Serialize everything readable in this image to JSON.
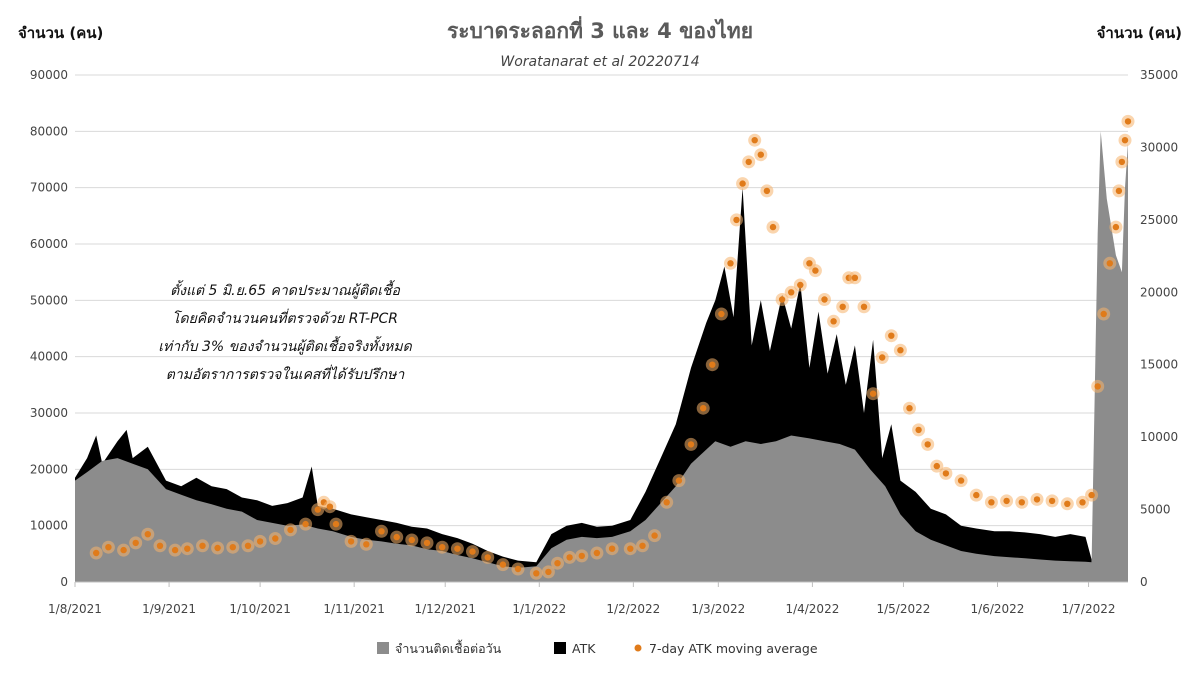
{
  "chart_data": {
    "type": "area",
    "title": "ระบาดระลอกที่ 3 และ 4 ของไทย",
    "subtitle": "Woratanarat et al 20220714",
    "ylabel_left": "จำนวน (คน)",
    "ylabel_right": "จำนวน (คน)",
    "ylim_left": [
      0,
      90000
    ],
    "ylim_right": [
      0,
      35000
    ],
    "y_ticks_left": [
      "0",
      "10000",
      "20000",
      "30000",
      "40000",
      "50000",
      "60000",
      "70000",
      "80000",
      "90000"
    ],
    "y_ticks_right": [
      "0",
      "5000",
      "10000",
      "15000",
      "20000",
      "25000",
      "30000",
      "35000"
    ],
    "x_ticks": [
      "1/8/2021",
      "1/9/2021",
      "1/10/2021",
      "1/11/2021",
      "1/12/2021",
      "1/1/2022",
      "1/2/2022",
      "1/3/2022",
      "1/4/2022",
      "1/5/2022",
      "1/6/2022",
      "1/7/2022"
    ],
    "x_range": [
      "2021-08-01",
      "2022-07-14"
    ],
    "annotation": [
      "ตั้งแต่ 5 มิ.ย.65 คาดประมาณผู้ติดเชื้อ",
      "โดยคิดจำนวนคนที่ตรวจด้วย RT-PCR",
      "เท่ากับ 3% ของจำนวนผู้ติดเชื้อจริงทั้งหมด",
      "ตามอัตราการตรวจในเคสที่ได้รับปรึกษา"
    ],
    "legend_position": "bottom",
    "series": [
      {
        "name": "จำนวนติดเชื้อต่อวัน",
        "axis": "left",
        "color": "#8c8c8c",
        "kind": "area",
        "points": [
          [
            "2021-08-01",
            18000
          ],
          [
            "2021-08-05",
            19500
          ],
          [
            "2021-08-10",
            21500
          ],
          [
            "2021-08-15",
            22000
          ],
          [
            "2021-08-20",
            21000
          ],
          [
            "2021-08-25",
            20000
          ],
          [
            "2021-08-31",
            16500
          ],
          [
            "2021-09-05",
            15500
          ],
          [
            "2021-09-10",
            14500
          ],
          [
            "2021-09-15",
            13800
          ],
          [
            "2021-09-20",
            13000
          ],
          [
            "2021-09-25",
            12500
          ],
          [
            "2021-09-30",
            11000
          ],
          [
            "2021-10-05",
            10500
          ],
          [
            "2021-10-10",
            10000
          ],
          [
            "2021-10-15",
            10200
          ],
          [
            "2021-10-20",
            9500
          ],
          [
            "2021-10-25",
            9000
          ],
          [
            "2021-10-31",
            8000
          ],
          [
            "2021-11-05",
            7500
          ],
          [
            "2021-11-10",
            7200
          ],
          [
            "2021-11-15",
            6800
          ],
          [
            "2021-11-20",
            6500
          ],
          [
            "2021-11-25",
            5800
          ],
          [
            "2021-11-30",
            5500
          ],
          [
            "2021-12-05",
            4800
          ],
          [
            "2021-12-10",
            4200
          ],
          [
            "2021-12-15",
            3500
          ],
          [
            "2021-12-20",
            2800
          ],
          [
            "2021-12-25",
            2500
          ],
          [
            "2021-12-31",
            2800
          ],
          [
            "2022-01-05",
            6000
          ],
          [
            "2022-01-10",
            7500
          ],
          [
            "2022-01-15",
            8000
          ],
          [
            "2022-01-20",
            7800
          ],
          [
            "2022-01-25",
            8000
          ],
          [
            "2022-01-31",
            9000
          ],
          [
            "2022-02-05",
            11000
          ],
          [
            "2022-02-10",
            14000
          ],
          [
            "2022-02-15",
            17000
          ],
          [
            "2022-02-20",
            21000
          ],
          [
            "2022-02-25",
            23500
          ],
          [
            "2022-02-28",
            25000
          ],
          [
            "2022-03-05",
            24000
          ],
          [
            "2022-03-10",
            25000
          ],
          [
            "2022-03-15",
            24500
          ],
          [
            "2022-03-20",
            25000
          ],
          [
            "2022-03-25",
            26000
          ],
          [
            "2022-03-31",
            25500
          ],
          [
            "2022-04-05",
            25000
          ],
          [
            "2022-04-10",
            24500
          ],
          [
            "2022-04-15",
            23500
          ],
          [
            "2022-04-20",
            20000
          ],
          [
            "2022-04-25",
            17000
          ],
          [
            "2022-04-30",
            12000
          ],
          [
            "2022-05-05",
            9000
          ],
          [
            "2022-05-10",
            7500
          ],
          [
            "2022-05-15",
            6500
          ],
          [
            "2022-05-20",
            5500
          ],
          [
            "2022-05-25",
            5000
          ],
          [
            "2022-05-31",
            4600
          ],
          [
            "2022-06-05",
            4400
          ],
          [
            "2022-06-10",
            4200
          ],
          [
            "2022-06-15",
            4000
          ],
          [
            "2022-06-20",
            3800
          ],
          [
            "2022-06-25",
            3700
          ],
          [
            "2022-06-30",
            3600
          ],
          [
            "2022-07-02",
            3500
          ],
          [
            "2022-07-04",
            62000
          ],
          [
            "2022-07-05",
            80000
          ],
          [
            "2022-07-07",
            68000
          ],
          [
            "2022-07-10",
            58000
          ],
          [
            "2022-07-12",
            55000
          ],
          [
            "2022-07-13",
            70000
          ],
          [
            "2022-07-14",
            78000
          ]
        ]
      },
      {
        "name": "ATK",
        "axis": "left",
        "color": "#000000",
        "kind": "area",
        "points": [
          [
            "2021-08-01",
            18500
          ],
          [
            "2021-08-05",
            22000
          ],
          [
            "2021-08-08",
            26000
          ],
          [
            "2021-08-10",
            21000
          ],
          [
            "2021-08-15",
            25000
          ],
          [
            "2021-08-18",
            27000
          ],
          [
            "2021-08-20",
            22000
          ],
          [
            "2021-08-25",
            24000
          ],
          [
            "2021-08-31",
            18000
          ],
          [
            "2021-09-05",
            17000
          ],
          [
            "2021-09-10",
            18500
          ],
          [
            "2021-09-15",
            17000
          ],
          [
            "2021-09-20",
            16500
          ],
          [
            "2021-09-25",
            15000
          ],
          [
            "2021-09-30",
            14500
          ],
          [
            "2021-10-05",
            13500
          ],
          [
            "2021-10-10",
            14000
          ],
          [
            "2021-10-15",
            15000
          ],
          [
            "2021-10-18",
            20500
          ],
          [
            "2021-10-20",
            13500
          ],
          [
            "2021-10-25",
            13000
          ],
          [
            "2021-10-31",
            12000
          ],
          [
            "2021-11-05",
            11500
          ],
          [
            "2021-11-10",
            11000
          ],
          [
            "2021-11-15",
            10500
          ],
          [
            "2021-11-20",
            9800
          ],
          [
            "2021-11-25",
            9500
          ],
          [
            "2021-11-30",
            8500
          ],
          [
            "2021-12-05",
            7800
          ],
          [
            "2021-12-10",
            6800
          ],
          [
            "2021-12-15",
            5500
          ],
          [
            "2021-12-20",
            4500
          ],
          [
            "2021-12-25",
            3800
          ],
          [
            "2021-12-31",
            3500
          ],
          [
            "2022-01-05",
            8500
          ],
          [
            "2022-01-10",
            10000
          ],
          [
            "2022-01-15",
            10500
          ],
          [
            "2022-01-20",
            9800
          ],
          [
            "2022-01-25",
            10000
          ],
          [
            "2022-01-31",
            11000
          ],
          [
            "2022-02-05",
            16000
          ],
          [
            "2022-02-10",
            22000
          ],
          [
            "2022-02-15",
            28000
          ],
          [
            "2022-02-20",
            38000
          ],
          [
            "2022-02-25",
            46000
          ],
          [
            "2022-02-28",
            50000
          ],
          [
            "2022-03-03",
            56000
          ],
          [
            "2022-03-06",
            47000
          ],
          [
            "2022-03-09",
            70000
          ],
          [
            "2022-03-12",
            42000
          ],
          [
            "2022-03-15",
            50000
          ],
          [
            "2022-03-18",
            41000
          ],
          [
            "2022-03-22",
            51000
          ],
          [
            "2022-03-25",
            45000
          ],
          [
            "2022-03-28",
            53000
          ],
          [
            "2022-03-31",
            38000
          ],
          [
            "2022-04-03",
            48000
          ],
          [
            "2022-04-06",
            37000
          ],
          [
            "2022-04-09",
            44000
          ],
          [
            "2022-04-12",
            35000
          ],
          [
            "2022-04-15",
            42000
          ],
          [
            "2022-04-18",
            30000
          ],
          [
            "2022-04-21",
            43000
          ],
          [
            "2022-04-24",
            22000
          ],
          [
            "2022-04-27",
            28000
          ],
          [
            "2022-04-30",
            18000
          ],
          [
            "2022-05-05",
            16000
          ],
          [
            "2022-05-10",
            13000
          ],
          [
            "2022-05-15",
            12000
          ],
          [
            "2022-05-20",
            10000
          ],
          [
            "2022-05-25",
            9500
          ],
          [
            "2022-05-31",
            9000
          ],
          [
            "2022-06-05",
            9000
          ],
          [
            "2022-06-10",
            8800
          ],
          [
            "2022-06-15",
            8500
          ],
          [
            "2022-06-20",
            8000
          ],
          [
            "2022-06-25",
            8500
          ],
          [
            "2022-06-30",
            8000
          ],
          [
            "2022-07-02",
            4000
          ]
        ]
      },
      {
        "name": "7-day ATK moving average",
        "axis": "right",
        "color": "#e07b1a",
        "kind": "dots",
        "points": [
          [
            "2021-08-08",
            2000
          ],
          [
            "2021-08-12",
            2400
          ],
          [
            "2021-08-17",
            2200
          ],
          [
            "2021-08-21",
            2700
          ],
          [
            "2021-08-25",
            3300
          ],
          [
            "2021-08-29",
            2500
          ],
          [
            "2021-09-03",
            2200
          ],
          [
            "2021-09-07",
            2300
          ],
          [
            "2021-09-12",
            2500
          ],
          [
            "2021-09-17",
            2350
          ],
          [
            "2021-09-22",
            2400
          ],
          [
            "2021-09-27",
            2500
          ],
          [
            "2021-10-01",
            2800
          ],
          [
            "2021-10-06",
            3000
          ],
          [
            "2021-10-11",
            3600
          ],
          [
            "2021-10-16",
            4000
          ],
          [
            "2021-10-20",
            5000
          ],
          [
            "2021-10-22",
            5500
          ],
          [
            "2021-10-24",
            5200
          ],
          [
            "2021-10-26",
            4000
          ],
          [
            "2021-10-31",
            2800
          ],
          [
            "2021-11-05",
            2600
          ],
          [
            "2021-11-10",
            3500
          ],
          [
            "2021-11-15",
            3100
          ],
          [
            "2021-11-20",
            2900
          ],
          [
            "2021-11-25",
            2700
          ],
          [
            "2021-11-30",
            2400
          ],
          [
            "2021-12-05",
            2300
          ],
          [
            "2021-12-10",
            2100
          ],
          [
            "2021-12-15",
            1700
          ],
          [
            "2021-12-20",
            1200
          ],
          [
            "2021-12-25",
            900
          ],
          [
            "2021-12-31",
            600
          ],
          [
            "2022-01-04",
            700
          ],
          [
            "2022-01-07",
            1300
          ],
          [
            "2022-01-11",
            1700
          ],
          [
            "2022-01-15",
            1800
          ],
          [
            "2022-01-20",
            2000
          ],
          [
            "2022-01-25",
            2300
          ],
          [
            "2022-01-31",
            2300
          ],
          [
            "2022-02-04",
            2500
          ],
          [
            "2022-02-08",
            3200
          ],
          [
            "2022-02-12",
            5500
          ],
          [
            "2022-02-16",
            7000
          ],
          [
            "2022-02-20",
            9500
          ],
          [
            "2022-02-24",
            12000
          ],
          [
            "2022-02-27",
            15000
          ],
          [
            "2022-03-02",
            18500
          ],
          [
            "2022-03-05",
            22000
          ],
          [
            "2022-03-07",
            25000
          ],
          [
            "2022-03-09",
            27500
          ],
          [
            "2022-03-11",
            29000
          ],
          [
            "2022-03-13",
            30500
          ],
          [
            "2022-03-15",
            29500
          ],
          [
            "2022-03-17",
            27000
          ],
          [
            "2022-03-19",
            24500
          ],
          [
            "2022-03-22",
            19500
          ],
          [
            "2022-03-25",
            20000
          ],
          [
            "2022-03-28",
            20500
          ],
          [
            "2022-03-31",
            22000
          ],
          [
            "2022-04-02",
            21500
          ],
          [
            "2022-04-05",
            19500
          ],
          [
            "2022-04-08",
            18000
          ],
          [
            "2022-04-11",
            19000
          ],
          [
            "2022-04-13",
            21000
          ],
          [
            "2022-04-15",
            21000
          ],
          [
            "2022-04-18",
            19000
          ],
          [
            "2022-04-21",
            13000
          ],
          [
            "2022-04-24",
            15500
          ],
          [
            "2022-04-27",
            17000
          ],
          [
            "2022-04-30",
            16000
          ],
          [
            "2022-05-03",
            12000
          ],
          [
            "2022-05-06",
            10500
          ],
          [
            "2022-05-09",
            9500
          ],
          [
            "2022-05-12",
            8000
          ],
          [
            "2022-05-15",
            7500
          ],
          [
            "2022-05-20",
            7000
          ],
          [
            "2022-05-25",
            6000
          ],
          [
            "2022-05-30",
            5500
          ],
          [
            "2022-06-04",
            5600
          ],
          [
            "2022-06-09",
            5500
          ],
          [
            "2022-06-14",
            5700
          ],
          [
            "2022-06-19",
            5600
          ],
          [
            "2022-06-24",
            5400
          ],
          [
            "2022-06-29",
            5500
          ],
          [
            "2022-07-02",
            6000
          ],
          [
            "2022-07-04",
            13500
          ],
          [
            "2022-07-06",
            18500
          ],
          [
            "2022-07-08",
            22000
          ],
          [
            "2022-07-10",
            24500
          ],
          [
            "2022-07-11",
            27000
          ],
          [
            "2022-07-12",
            29000
          ],
          [
            "2022-07-13",
            30500
          ],
          [
            "2022-07-14",
            31800
          ]
        ]
      }
    ]
  }
}
